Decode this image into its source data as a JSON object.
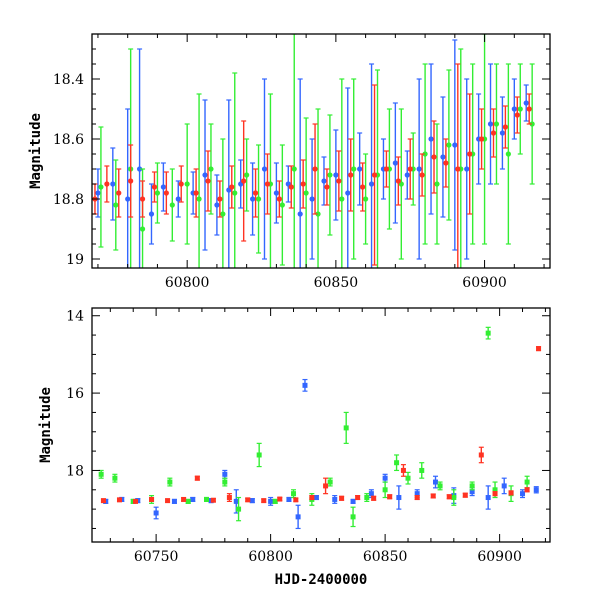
{
  "chart_data": [
    {
      "type": "scatter",
      "title": "",
      "xlabel": "",
      "ylabel": "Magnitude",
      "xlim": [
        60768,
        60922
      ],
      "ylim": [
        19.03,
        18.25
      ],
      "y_inverted": true,
      "x_ticks": [
        60800,
        60850,
        60900
      ],
      "y_ticks": [
        18.4,
        18.6,
        18.8,
        19
      ],
      "y_tick_labels": [
        "18.4",
        "18.6",
        "18.8",
        "19"
      ],
      "grid": false,
      "legend": "none",
      "error_bars": true,
      "series": [
        {
          "color": "#3366ff",
          "points": [
            [
              60770,
              18.78,
              0.08
            ],
            [
              60775,
              18.75,
              0.12
            ],
            [
              60780,
              18.8,
              0.3
            ],
            [
              60784,
              18.7,
              0.4
            ],
            [
              60788,
              18.85,
              0.1
            ],
            [
              60792,
              18.76,
              0.08
            ],
            [
              60797,
              18.8,
              0.06
            ],
            [
              60802,
              18.78,
              0.07
            ],
            [
              60806,
              18.72,
              0.25
            ],
            [
              60810,
              18.82,
              0.1
            ],
            [
              60814,
              18.77,
              0.3
            ],
            [
              60818,
              18.75,
              0.08
            ],
            [
              60822,
              18.8,
              0.12
            ],
            [
              60826,
              18.7,
              0.3
            ],
            [
              60830,
              18.78,
              0.1
            ],
            [
              60834,
              18.75,
              0.06
            ],
            [
              60838,
              18.85,
              0.45
            ],
            [
              60842,
              18.8,
              0.2
            ],
            [
              60846,
              18.74,
              0.08
            ],
            [
              60850,
              18.72,
              0.15
            ],
            [
              60854,
              18.78,
              0.35
            ],
            [
              60858,
              18.7,
              0.12
            ],
            [
              60862,
              18.75,
              0.4
            ],
            [
              60866,
              18.7,
              0.1
            ],
            [
              60870,
              18.68,
              0.2
            ],
            [
              60874,
              18.72,
              0.08
            ],
            [
              60878,
              18.7,
              0.3
            ],
            [
              60882,
              18.6,
              0.25
            ],
            [
              60886,
              18.66,
              0.2
            ],
            [
              60890,
              18.62,
              0.35
            ],
            [
              60894,
              18.7,
              0.3
            ],
            [
              60898,
              18.6,
              0.15
            ],
            [
              60902,
              18.55,
              0.2
            ],
            [
              60906,
              18.58,
              0.12
            ],
            [
              60910,
              18.5,
              0.1
            ],
            [
              60914,
              18.48,
              0.06
            ]
          ]
        },
        {
          "color": "#33ee33",
          "points": [
            [
              60771,
              18.76,
              0.2
            ],
            [
              60776,
              18.82,
              0.15
            ],
            [
              60781,
              18.7,
              0.4
            ],
            [
              60785,
              18.9,
              0.2
            ],
            [
              60790,
              18.78,
              0.1
            ],
            [
              60795,
              18.82,
              0.12
            ],
            [
              60800,
              18.75,
              0.2
            ],
            [
              60804,
              18.8,
              0.35
            ],
            [
              60808,
              18.7,
              0.15
            ],
            [
              60812,
              18.85,
              0.25
            ],
            [
              60816,
              18.78,
              0.4
            ],
            [
              60820,
              18.72,
              0.12
            ],
            [
              60824,
              18.8,
              0.18
            ],
            [
              60828,
              18.75,
              0.3
            ],
            [
              60832,
              18.82,
              0.2
            ],
            [
              60836,
              18.7,
              0.45
            ],
            [
              60840,
              18.78,
              0.25
            ],
            [
              60844,
              18.85,
              0.35
            ],
            [
              60848,
              18.72,
              0.2
            ],
            [
              60852,
              18.8,
              0.4
            ],
            [
              60856,
              18.7,
              0.3
            ],
            [
              60860,
              18.8,
              0.15
            ],
            [
              60864,
              18.72,
              0.35
            ],
            [
              60868,
              18.7,
              0.2
            ],
            [
              60872,
              18.75,
              0.25
            ],
            [
              60876,
              18.7,
              0.12
            ],
            [
              60880,
              18.65,
              0.3
            ],
            [
              60884,
              18.75,
              0.2
            ],
            [
              60888,
              18.62,
              0.25
            ],
            [
              60892,
              18.7,
              0.4
            ],
            [
              60896,
              18.65,
              0.3
            ],
            [
              60900,
              18.6,
              0.35
            ],
            [
              60904,
              18.55,
              0.2
            ],
            [
              60908,
              18.65,
              0.3
            ],
            [
              60912,
              18.5,
              0.15
            ],
            [
              60916,
              18.55,
              0.2
            ]
          ]
        },
        {
          "color": "#ff3322",
          "points": [
            [
              60769,
              18.8,
              0.05
            ],
            [
              60773,
              18.75,
              0.06
            ],
            [
              60777,
              18.78,
              0.08
            ],
            [
              60781,
              18.74,
              0.12
            ],
            [
              60785,
              18.8,
              0.06
            ],
            [
              60789,
              18.76,
              0.05
            ],
            [
              60793,
              18.78,
              0.07
            ],
            [
              60798,
              18.75,
              0.06
            ],
            [
              60803,
              18.78,
              0.08
            ],
            [
              60807,
              18.74,
              0.1
            ],
            [
              60811,
              18.8,
              0.06
            ],
            [
              60815,
              18.76,
              0.07
            ],
            [
              60819,
              18.74,
              0.2
            ],
            [
              60823,
              18.78,
              0.08
            ],
            [
              60827,
              18.75,
              0.1
            ],
            [
              60831,
              18.8,
              0.06
            ],
            [
              60835,
              18.76,
              0.07
            ],
            [
              60839,
              18.75,
              0.08
            ],
            [
              60843,
              18.7,
              0.15
            ],
            [
              60847,
              18.76,
              0.06
            ],
            [
              60851,
              18.74,
              0.1
            ],
            [
              60855,
              18.72,
              0.12
            ],
            [
              60859,
              18.76,
              0.08
            ],
            [
              60863,
              18.72,
              0.3
            ],
            [
              60867,
              18.7,
              0.06
            ],
            [
              60871,
              18.74,
              0.08
            ],
            [
              60875,
              18.7,
              0.1
            ],
            [
              60879,
              18.72,
              0.07
            ],
            [
              60883,
              18.66,
              0.12
            ],
            [
              60887,
              18.68,
              0.08
            ],
            [
              60891,
              18.7,
              0.35
            ],
            [
              60895,
              18.65,
              0.2
            ],
            [
              60899,
              18.6,
              0.1
            ],
            [
              60903,
              18.58,
              0.08
            ],
            [
              60907,
              18.56,
              0.07
            ],
            [
              60911,
              18.52,
              0.06
            ],
            [
              60915,
              18.5,
              0.05
            ]
          ]
        }
      ]
    },
    {
      "type": "scatter",
      "title": "",
      "xlabel": "HJD-2400000",
      "ylabel": "Magnitude",
      "xlim": [
        60722,
        60922
      ],
      "ylim": [
        19.85,
        13.8
      ],
      "y_inverted": true,
      "x_ticks": [
        60750,
        60800,
        60850,
        60900
      ],
      "y_ticks": [
        14,
        16,
        18
      ],
      "y_tick_labels": [
        "14",
        "16",
        "18"
      ],
      "grid": false,
      "legend": "none",
      "error_bars": true,
      "series": [
        {
          "color": "#3366ff",
          "points": [
            [
              60728,
              18.8,
              0.05
            ],
            [
              60735,
              18.75,
              0.05
            ],
            [
              60742,
              18.78,
              0.05
            ],
            [
              60750,
              19.1,
              0.15
            ],
            [
              60758,
              18.8,
              0.05
            ],
            [
              60766,
              18.75,
              0.05
            ],
            [
              60774,
              18.78,
              0.05
            ],
            [
              60780,
              18.1,
              0.1
            ],
            [
              60785,
              18.8,
              0.3
            ],
            [
              60792,
              18.78,
              0.05
            ],
            [
              60800,
              18.8,
              0.1
            ],
            [
              60808,
              18.75,
              0.05
            ],
            [
              60812,
              19.2,
              0.3
            ],
            [
              60815,
              15.8,
              0.15
            ],
            [
              60820,
              18.7,
              0.05
            ],
            [
              60828,
              18.75,
              0.1
            ],
            [
              60836,
              18.8,
              0.05
            ],
            [
              60844,
              18.6,
              0.1
            ],
            [
              60850,
              18.2,
              0.1
            ],
            [
              60856,
              18.7,
              0.3
            ],
            [
              60864,
              18.6,
              0.1
            ],
            [
              60872,
              18.3,
              0.15
            ],
            [
              60880,
              18.65,
              0.2
            ],
            [
              60888,
              18.55,
              0.1
            ],
            [
              60895,
              18.7,
              0.3
            ],
            [
              60902,
              18.4,
              0.2
            ],
            [
              60910,
              18.6,
              0.1
            ],
            [
              60916,
              18.5,
              0.08
            ]
          ]
        },
        {
          "color": "#33ee33",
          "points": [
            [
              60726,
              18.1,
              0.1
            ],
            [
              60732,
              18.2,
              0.1
            ],
            [
              60740,
              18.8,
              0.05
            ],
            [
              60748,
              18.75,
              0.1
            ],
            [
              60756,
              18.3,
              0.1
            ],
            [
              60764,
              18.8,
              0.05
            ],
            [
              60772,
              18.75,
              0.05
            ],
            [
              60780,
              18.3,
              0.1
            ],
            [
              60786,
              19.0,
              0.3
            ],
            [
              60795,
              17.6,
              0.3
            ],
            [
              60802,
              18.8,
              0.05
            ],
            [
              60810,
              18.6,
              0.1
            ],
            [
              60818,
              18.75,
              0.15
            ],
            [
              60826,
              18.3,
              0.1
            ],
            [
              60833,
              16.9,
              0.4
            ],
            [
              60836,
              19.2,
              0.25
            ],
            [
              60842,
              18.7,
              0.1
            ],
            [
              60850,
              18.5,
              0.2
            ],
            [
              60855,
              17.8,
              0.2
            ],
            [
              60860,
              18.2,
              0.15
            ],
            [
              60866,
              18.0,
              0.2
            ],
            [
              60874,
              18.4,
              0.1
            ],
            [
              60880,
              18.7,
              0.2
            ],
            [
              60888,
              18.4,
              0.1
            ],
            [
              60895,
              14.45,
              0.15
            ],
            [
              60898,
              18.5,
              0.2
            ],
            [
              60905,
              18.6,
              0.2
            ],
            [
              60912,
              18.3,
              0.15
            ]
          ]
        },
        {
          "color": "#ff3322",
          "points": [
            [
              60727,
              18.78,
              0.04
            ],
            [
              60734,
              18.76,
              0.04
            ],
            [
              60741,
              18.8,
              0.04
            ],
            [
              60748,
              18.75,
              0.04
            ],
            [
              60755,
              18.78,
              0.04
            ],
            [
              60762,
              18.75,
              0.04
            ],
            [
              60768,
              18.2,
              0.05
            ],
            [
              60775,
              18.77,
              0.04
            ],
            [
              60782,
              18.7,
              0.1
            ],
            [
              60790,
              18.76,
              0.04
            ],
            [
              60797,
              18.78,
              0.04
            ],
            [
              60804,
              18.74,
              0.04
            ],
            [
              60811,
              18.76,
              0.04
            ],
            [
              60818,
              18.7,
              0.05
            ],
            [
              60824,
              18.4,
              0.2
            ],
            [
              60831,
              18.72,
              0.05
            ],
            [
              60838,
              18.7,
              0.05
            ],
            [
              60845,
              18.72,
              0.05
            ],
            [
              60852,
              18.68,
              0.05
            ],
            [
              60858,
              18.0,
              0.15
            ],
            [
              60864,
              18.7,
              0.05
            ],
            [
              60871,
              18.66,
              0.05
            ],
            [
              60878,
              18.68,
              0.05
            ],
            [
              60885,
              18.64,
              0.05
            ],
            [
              60892,
              17.6,
              0.2
            ],
            [
              60898,
              18.6,
              0.05
            ],
            [
              60905,
              18.58,
              0.05
            ],
            [
              60912,
              18.5,
              0.05
            ],
            [
              60917,
              14.85,
              0.05
            ]
          ]
        }
      ]
    }
  ]
}
